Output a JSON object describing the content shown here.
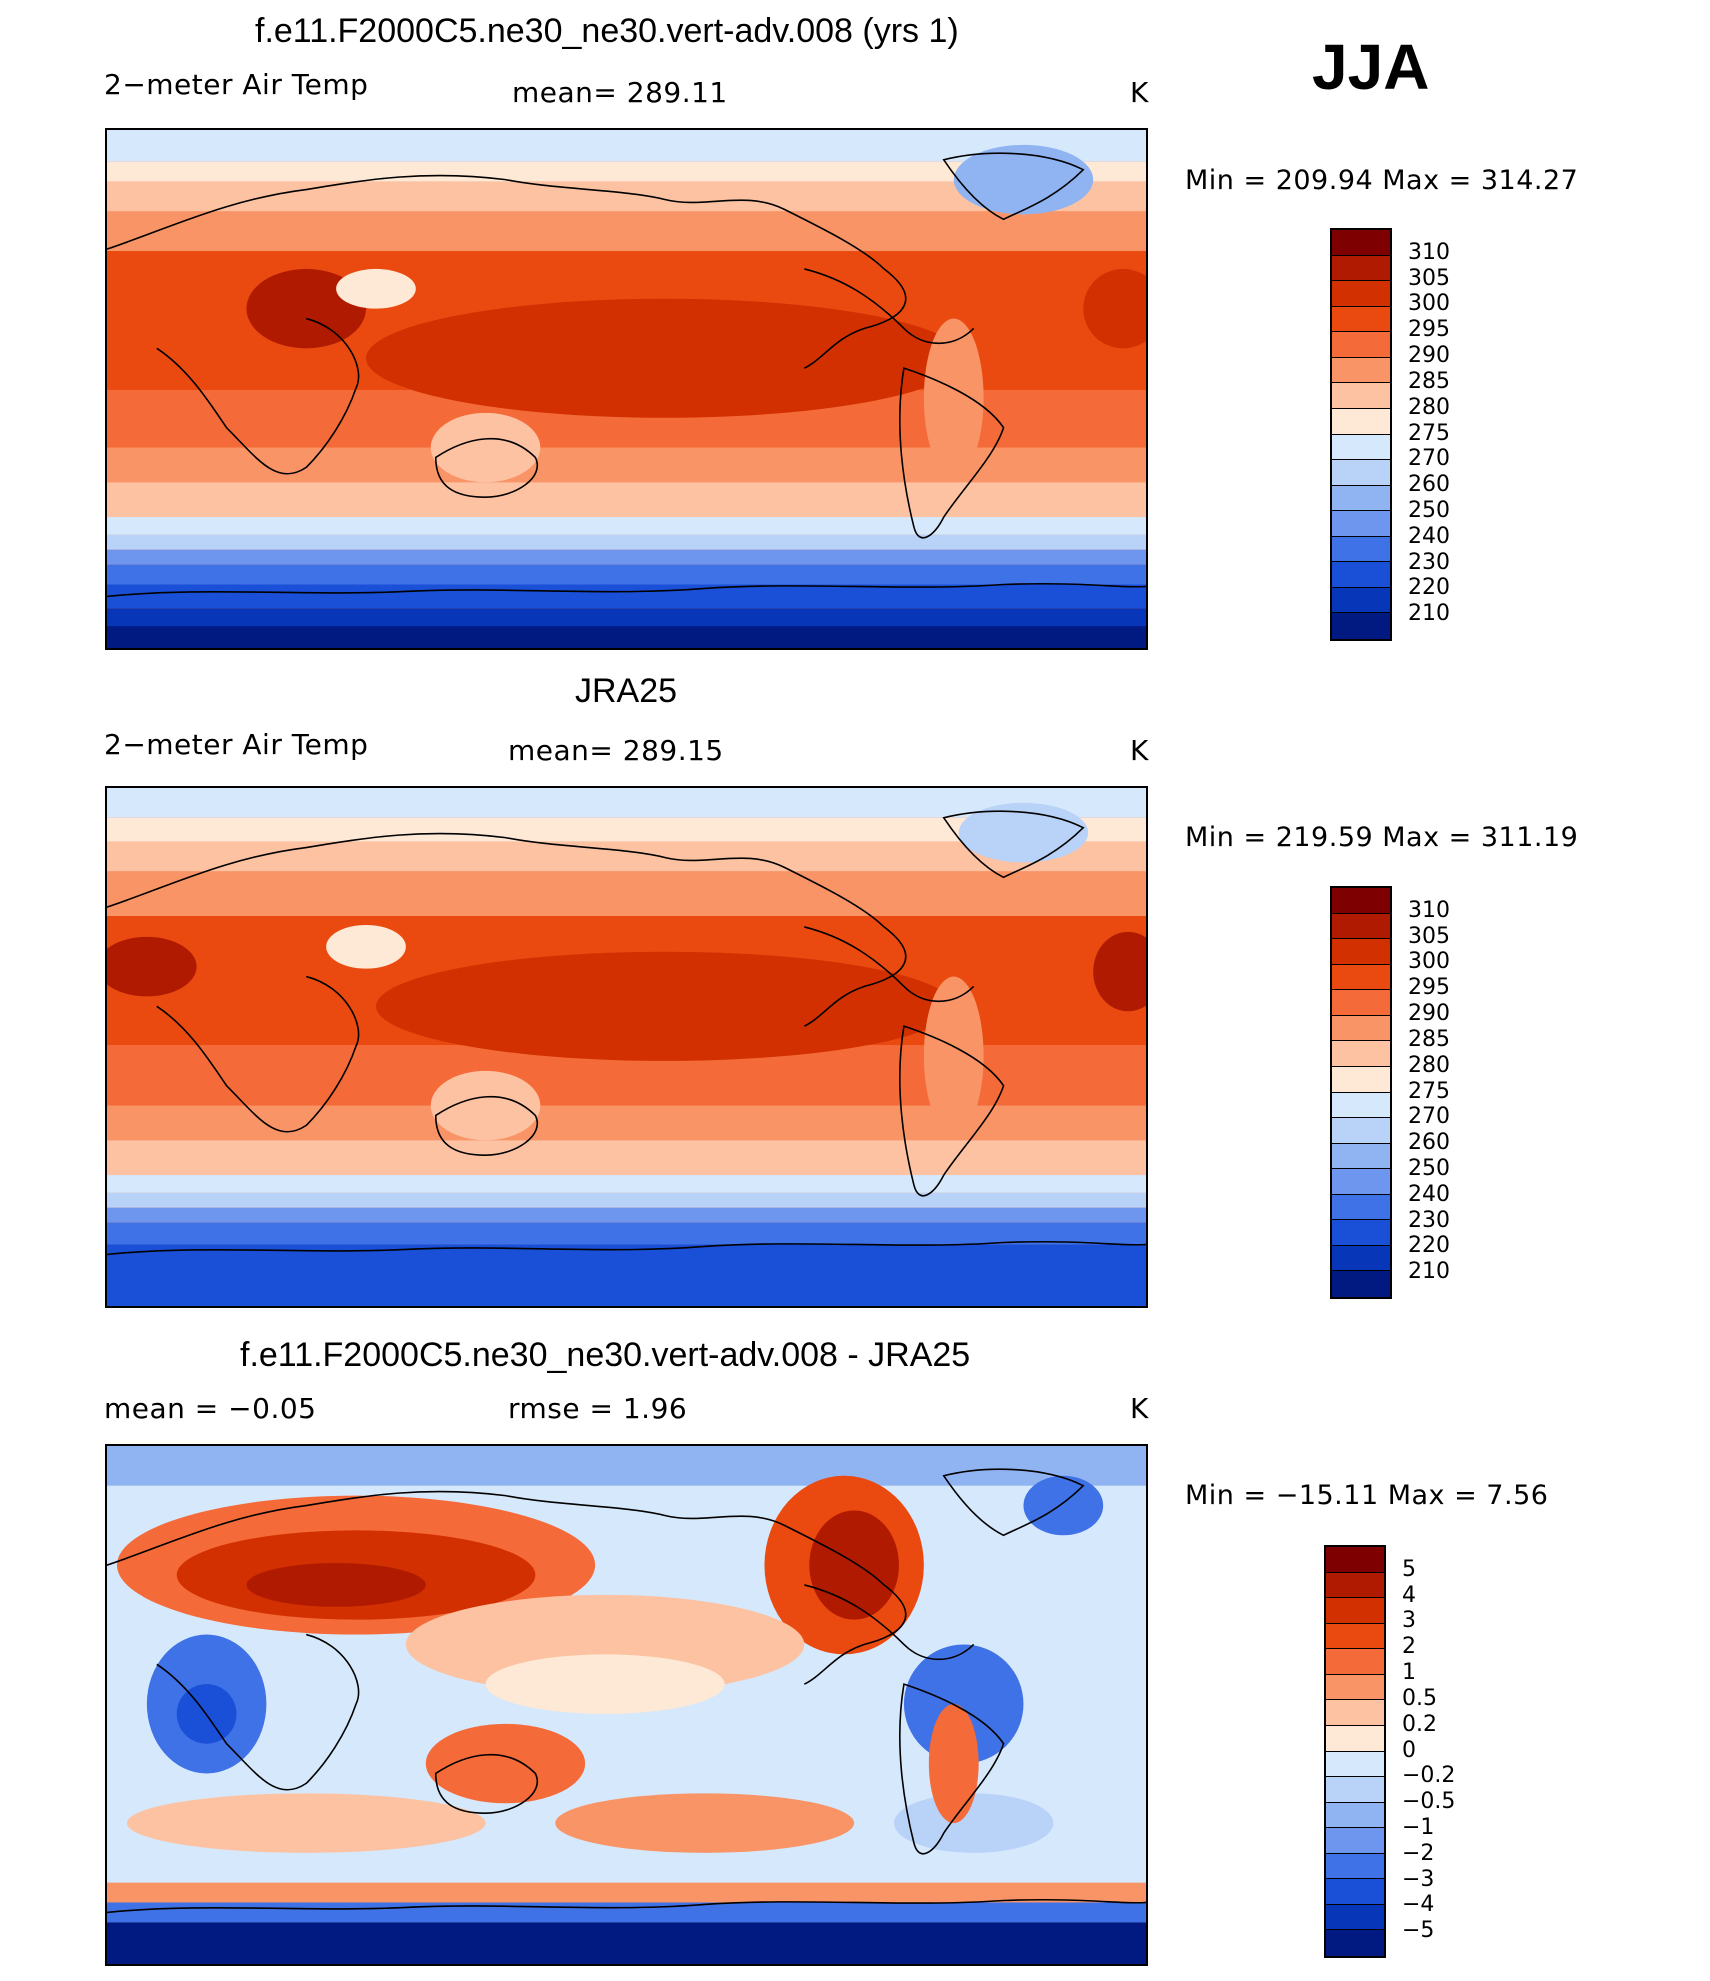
{
  "season": "JJA",
  "panels": [
    {
      "id": "model",
      "title": "f.e11.F2000C5.ne30_ne30.vert-adv.008 (yrs 1)",
      "left_label": "2−meter Air Temp",
      "center_label": "mean=  289.11",
      "units": "K",
      "minmax": "Min  =  209.94  Max  =  314.27",
      "colorbar": {
        "labels": [
          "310",
          "305",
          "300",
          "295",
          "290",
          "285",
          "280",
          "275",
          "270",
          "260",
          "250",
          "240",
          "230",
          "220",
          "210"
        ],
        "colors": [
          "#7f0000",
          "#b01a00",
          "#d23000",
          "#ea4a10",
          "#f46a38",
          "#f99466",
          "#fcc2a2",
          "#fde9d6",
          "#d6e8fb",
          "#b8d2f8",
          "#90b4f2",
          "#6e96ee",
          "#3f72e6",
          "#1a4fd8",
          "#0836b8",
          "#001a82"
        ]
      }
    },
    {
      "id": "obs",
      "title": "JRA25",
      "left_label": "2−meter Air Temp",
      "center_label": "mean=  289.15",
      "units": "K",
      "minmax": "Min  =  219.59  Max  =  311.19",
      "colorbar": {
        "labels": [
          "310",
          "305",
          "300",
          "295",
          "290",
          "285",
          "280",
          "275",
          "270",
          "260",
          "250",
          "240",
          "230",
          "220",
          "210"
        ],
        "colors": [
          "#7f0000",
          "#b01a00",
          "#d23000",
          "#ea4a10",
          "#f46a38",
          "#f99466",
          "#fcc2a2",
          "#fde9d6",
          "#d6e8fb",
          "#b8d2f8",
          "#90b4f2",
          "#6e96ee",
          "#3f72e6",
          "#1a4fd8",
          "#0836b8",
          "#001a82"
        ]
      }
    },
    {
      "id": "diff",
      "title": "f.e11.F2000C5.ne30_ne30.vert-adv.008 - JRA25",
      "left_label": "mean =    −0.05",
      "center_label": "rmse =     1.96",
      "units": "K",
      "minmax": "Min  =  −15.11  Max  =     7.56",
      "colorbar": {
        "labels": [
          "5",
          "4",
          "3",
          "2",
          "1",
          "0.5",
          "0.2",
          "0",
          "−0.2",
          "−0.5",
          "−1",
          "−2",
          "−3",
          "−4",
          "−5"
        ],
        "colors": [
          "#7f0000",
          "#b01a00",
          "#d23000",
          "#ea4a10",
          "#f46a38",
          "#f99466",
          "#fcc2a2",
          "#fde9d6",
          "#d6e8fb",
          "#b8d2f8",
          "#90b4f2",
          "#6e96ee",
          "#3f72e6",
          "#1a4fd8",
          "#0836b8",
          "#001a82"
        ]
      }
    }
  ]
}
